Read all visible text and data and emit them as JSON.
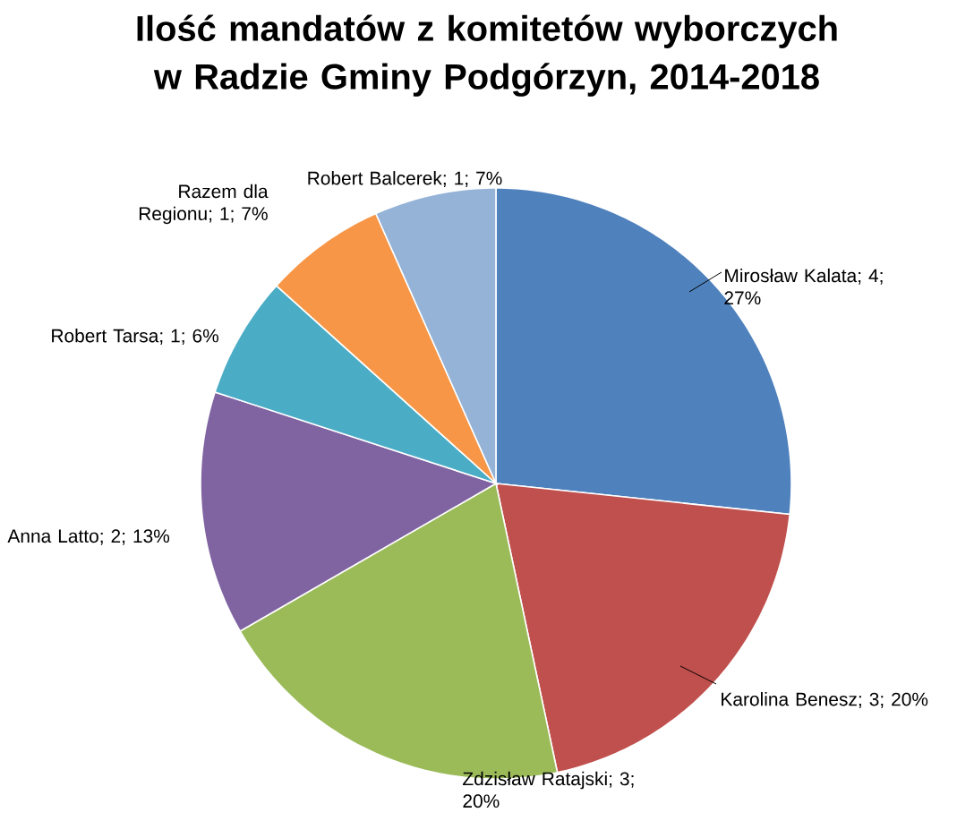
{
  "chart_data": {
    "type": "pie",
    "title": "Ilość mandatów z komitetów wyborczych w Radzie Gminy Podgórzyn, 2014-2018",
    "categories": [
      "Mirosław Kalata",
      "Karolina Benesz",
      "Zdzisław Ratajski",
      "Anna Latto",
      "Robert Tarsa",
      "Razem dla Regionu",
      "Robert Balcerek"
    ],
    "values": [
      4,
      3,
      3,
      2,
      1,
      1,
      1
    ],
    "value_labels": [
      "; 4; 27%",
      "; 3; 20%",
      "; 3; 20%",
      "; 2; 13%",
      "; 1; 6%",
      "; 1; 7%",
      "; 1; 7%"
    ],
    "colors": [
      "#4f81bd",
      "#c0504d",
      "#9bbb59",
      "#8064a2",
      "#4bacc6",
      "#f79646",
      "#95b3d7"
    ]
  }
}
